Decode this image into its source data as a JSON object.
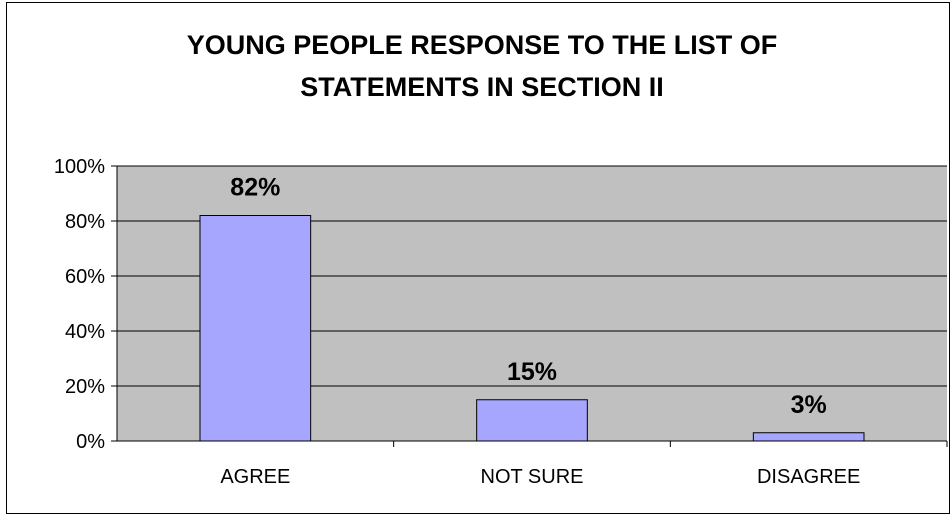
{
  "chart_data": {
    "type": "bar",
    "title_lines": [
      "YOUNG PEOPLE RESPONSE TO THE LIST OF",
      "STATEMENTS IN SECTION II"
    ],
    "categories": [
      "AGREE",
      "NOT SURE",
      "DISAGREE"
    ],
    "values": [
      82,
      15,
      3
    ],
    "data_labels": [
      "82%",
      "15%",
      "3%"
    ],
    "ylim": [
      0,
      100
    ],
    "y_ticks": [
      0,
      20,
      40,
      60,
      80,
      100
    ],
    "y_tick_labels": [
      "0%",
      "20%",
      "40%",
      "60%",
      "80%",
      "100%"
    ],
    "grid": true,
    "legend": "none",
    "colors": {
      "bar_fill": "#a6a6ff",
      "bar_stroke": "#000000",
      "plot_background": "#c0c0c0",
      "gridline": "#000000"
    }
  }
}
